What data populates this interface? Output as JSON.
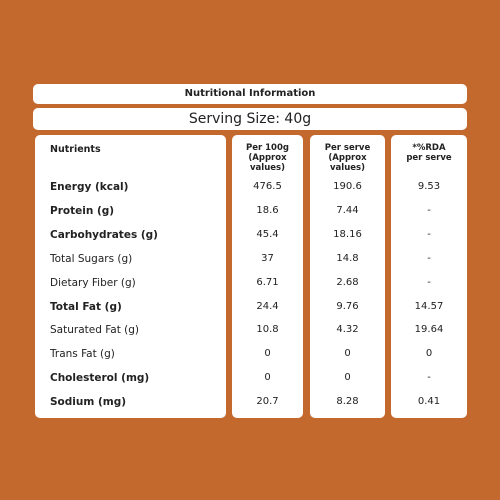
{
  "header": {
    "title": "Nutritional Information",
    "serving_size": "Serving Size: 40g"
  },
  "table": {
    "columns": [
      "Nutrients",
      "Per 100g (Approx values)",
      "Per serve (Approx values)",
      "*%RDA per serve"
    ],
    "rows": [
      {
        "cells": [
          "Energy (kcal)",
          "476.5",
          "190.6",
          "9.53"
        ],
        "bold": true
      },
      {
        "cells": [
          "Protein (g)",
          "18.6",
          "7.44",
          "-"
        ],
        "bold": true
      },
      {
        "cells": [
          "Carbohydrates (g)",
          "45.4",
          "18.16",
          "-"
        ],
        "bold": true
      },
      {
        "cells": [
          "Total Sugars (g)",
          "37",
          "14.8",
          "-"
        ],
        "bold": false
      },
      {
        "cells": [
          "Dietary Fiber (g)",
          "6.71",
          "2.68",
          "-"
        ],
        "bold": false
      },
      {
        "cells": [
          "Total Fat (g)",
          "24.4",
          "9.76",
          "14.57"
        ],
        "bold": true
      },
      {
        "cells": [
          "Saturated Fat (g)",
          "10.8",
          "4.32",
          "19.64"
        ],
        "bold": false
      },
      {
        "cells": [
          "Trans Fat (g)",
          "0",
          "0",
          "0"
        ],
        "bold": false
      },
      {
        "cells": [
          "Cholesterol (mg)",
          "0",
          "0",
          "-"
        ],
        "bold": true
      },
      {
        "cells": [
          "Sodium (mg)",
          "20.7",
          "8.28",
          "0.41"
        ],
        "bold": true
      }
    ]
  }
}
